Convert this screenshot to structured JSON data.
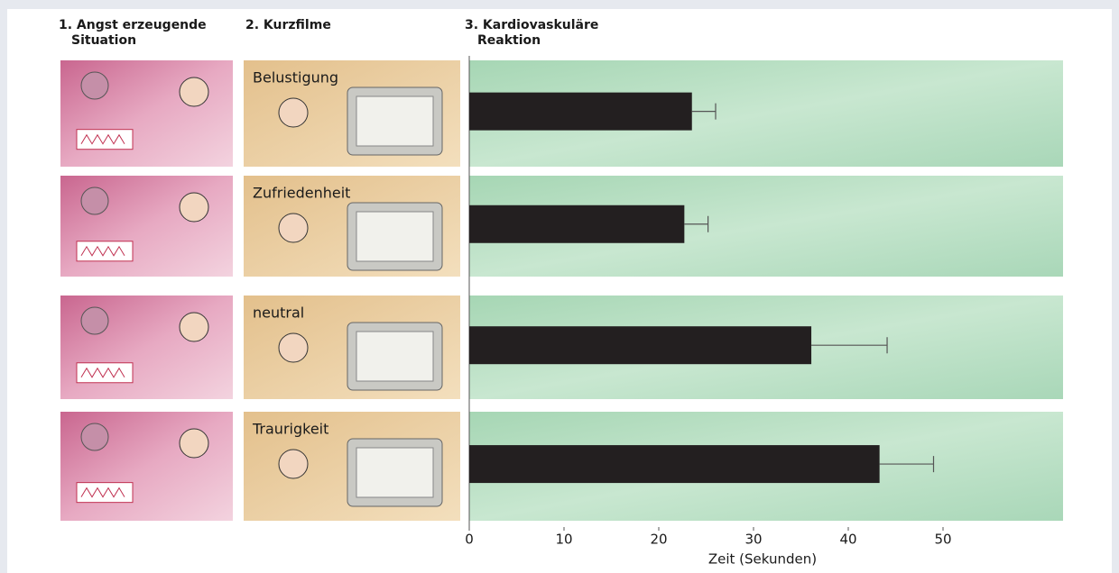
{
  "chart_data": {
    "type": "bar",
    "orientation": "horizontal",
    "column_headers": [
      [
        "1. Angst erzeugende",
        "Situation"
      ],
      [
        "2. Kurzfilme"
      ],
      [
        "3. Kardiovaskuläre",
        "Reaktion"
      ]
    ],
    "categories": [
      "Belustigung",
      "Zufriedenheit",
      "neutral",
      "Traurigkeit"
    ],
    "values": [
      23.5,
      22.7,
      36.1,
      43.3
    ],
    "errors": [
      2.5,
      2.5,
      8,
      5.7
    ],
    "color": "#231f20",
    "xlabel": "Zeit (Sekunden)",
    "xlim": [
      0,
      60
    ],
    "xticks": [
      0,
      10,
      20,
      30,
      40,
      50
    ]
  }
}
